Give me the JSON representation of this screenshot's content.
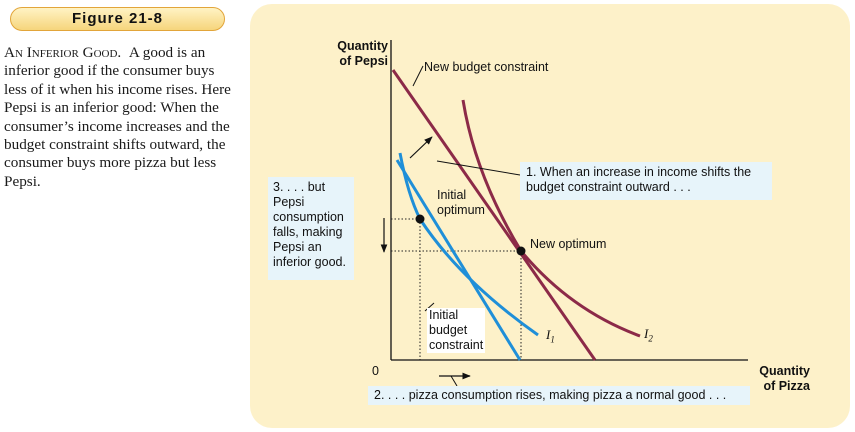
{
  "figure_label": "Figure 21-8",
  "caption": {
    "heading": "An Inferior Good.",
    "body": "A good is an inferior good if the consumer buys less of it when his income rises. Here Pepsi is an inferior good: When the consumer’s income increases and the budget constraint shifts outward, the consumer buys more pizza but less Pepsi."
  },
  "axes": {
    "y_title_line1": "Quantity",
    "y_title_line2": "of Pepsi",
    "x_title_line1": "Quantity",
    "x_title_line2": "of Pizza",
    "origin": "0"
  },
  "labels": {
    "new_budget": "New budget constraint",
    "initial_opt_1": "Initial",
    "initial_opt_2": "optimum",
    "new_opt": "New optimum",
    "init_budget_1": "Initial",
    "init_budget_2": "budget",
    "init_budget_3": "constraint",
    "i1_letter": "I",
    "i1_sub": "1",
    "i2_letter": "I",
    "i2_sub": "2"
  },
  "callouts": {
    "one_line1": "1. When an increase in income shifts the",
    "one_line2": "budget constraint outward . . .",
    "two": "2. . . . pizza consumption rises, making pizza a normal good . . .",
    "three_lines": [
      "3. . . . but",
      "Pepsi",
      "consumption",
      "falls, making",
      "Pepsi an",
      "inferior good."
    ]
  },
  "colors": {
    "initial_curves": "#1f8fd8",
    "new_curves": "#8c2a48",
    "panel": "#fdf1c9",
    "callout_box": "#e7f4fa"
  }
}
